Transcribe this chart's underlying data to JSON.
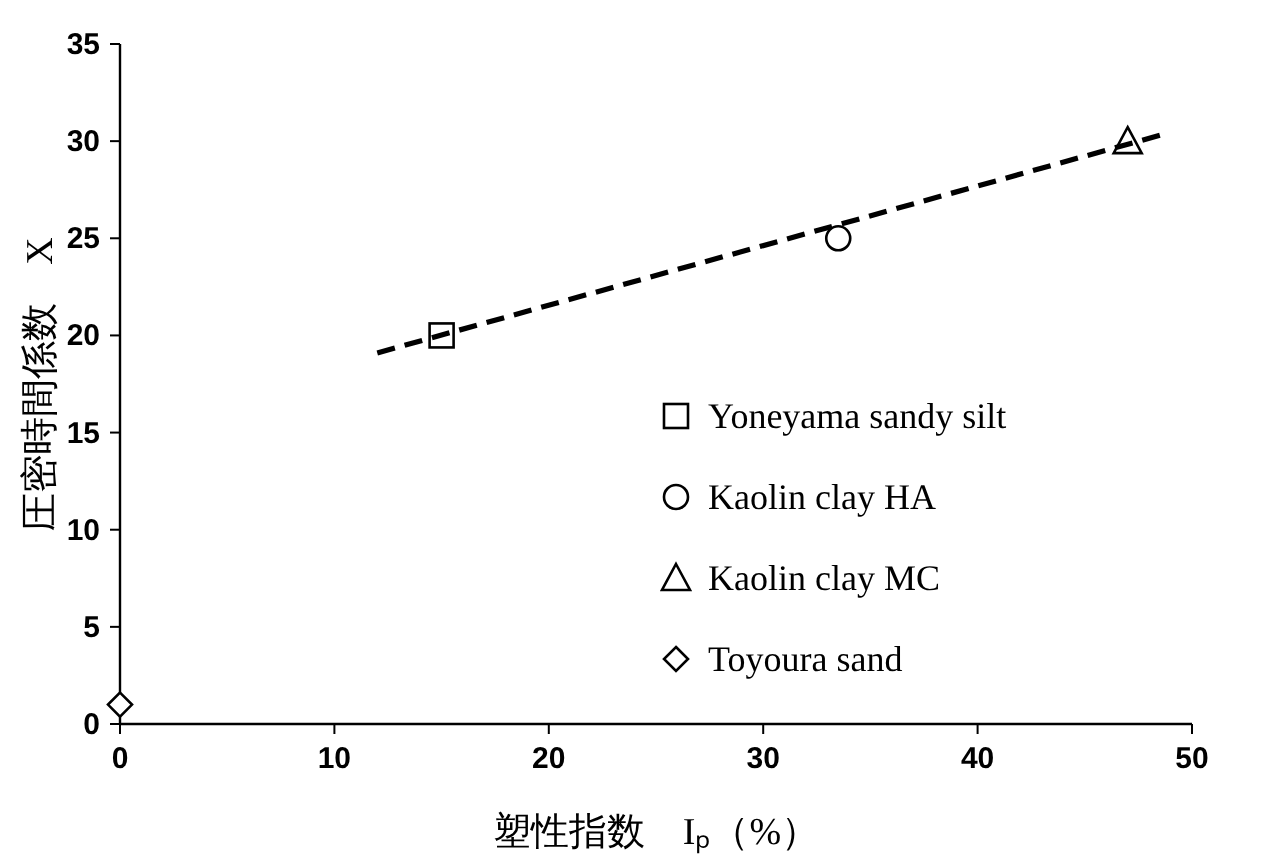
{
  "chart_data": {
    "type": "scatter",
    "xlabel": "塑性指数　Iₚ（%）",
    "ylabel": "圧密時間係数　X",
    "xlim": [
      0,
      50
    ],
    "xticks": [
      0,
      10,
      20,
      30,
      40,
      50
    ],
    "ylim": [
      0,
      35
    ],
    "yticks": [
      0,
      5,
      10,
      15,
      20,
      25,
      30,
      35
    ],
    "legend": "right",
    "series": [
      {
        "name": "Yoneyama sandy silt",
        "color": "#000000",
        "marker": "square",
        "x": [
          15
        ],
        "values": [
          20
        ]
      },
      {
        "name": "Kaolin clay HA",
        "color": "#000000",
        "marker": "circle",
        "x": [
          33.5
        ],
        "values": [
          25
        ]
      },
      {
        "name": "Kaolin clay MC",
        "color": "#000000",
        "marker": "triangle",
        "x": [
          47
        ],
        "values": [
          30
        ]
      },
      {
        "name": "Toyoura sand",
        "color": "#000000",
        "marker": "diamond",
        "x": [
          0
        ],
        "values": [
          1
        ]
      },
      {
        "type": "line",
        "color": "#000000",
        "line_style": "dashed",
        "x": [
          12,
          48.5
        ],
        "values": [
          19.1,
          30.3
        ]
      }
    ]
  }
}
